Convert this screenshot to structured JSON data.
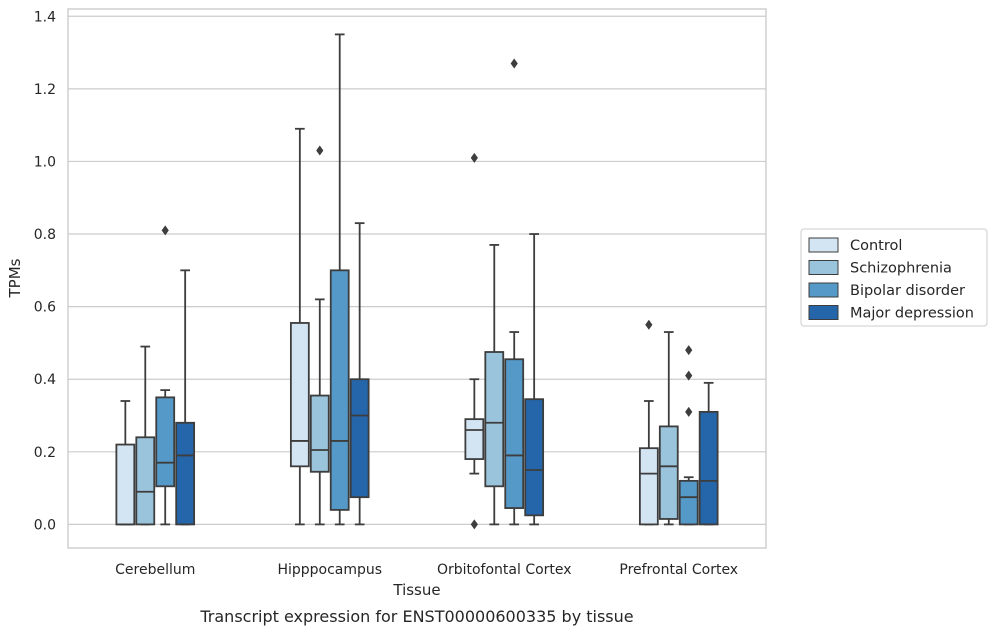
{
  "caption": "Transcript expression for ENST00000600335 by tissue",
  "chart_data": {
    "type": "box",
    "title": "",
    "xlabel": "Tissue",
    "ylabel": "TPMs",
    "ylim": [
      -0.065,
      1.42
    ],
    "yticks": [
      0.0,
      0.2,
      0.4,
      0.6,
      0.8,
      1.0,
      1.2,
      1.4
    ],
    "ytick_labels": [
      "0.0",
      "0.2",
      "0.4",
      "0.6",
      "0.8",
      "1.0",
      "1.2",
      "1.4"
    ],
    "grid": "horizontal",
    "legend_position": "right",
    "categories": [
      "Cerebellum",
      "Hipppocampus",
      "Orbitofontal Cortex",
      "Prefrontal Cortex"
    ],
    "series": [
      {
        "name": "Control",
        "color": "#d3e4f3",
        "boxes": [
          {
            "whislo": 0.0,
            "q1": 0.0,
            "med": 0.0,
            "q3": 0.22,
            "whishi": 0.34,
            "fliers": []
          },
          {
            "whislo": 0.0,
            "q1": 0.16,
            "med": 0.23,
            "q3": 0.555,
            "whishi": 1.09,
            "fliers": []
          },
          {
            "whislo": 0.14,
            "q1": 0.18,
            "med": 0.26,
            "q3": 0.29,
            "whishi": 0.4,
            "fliers": [
              1.01,
              0.0
            ]
          },
          {
            "whislo": 0.0,
            "q1": 0.0,
            "med": 0.14,
            "q3": 0.21,
            "whishi": 0.34,
            "fliers": [
              0.55
            ]
          }
        ]
      },
      {
        "name": "Schizophrenia",
        "color": "#9ac3dc",
        "boxes": [
          {
            "whislo": 0.0,
            "q1": 0.0,
            "med": 0.09,
            "q3": 0.24,
            "whishi": 0.49,
            "fliers": []
          },
          {
            "whislo": 0.0,
            "q1": 0.145,
            "med": 0.205,
            "q3": 0.355,
            "whishi": 0.62,
            "fliers": [
              1.03
            ]
          },
          {
            "whislo": 0.0,
            "q1": 0.105,
            "med": 0.28,
            "q3": 0.475,
            "whishi": 0.77,
            "fliers": []
          },
          {
            "whislo": 0.0,
            "q1": 0.015,
            "med": 0.16,
            "q3": 0.27,
            "whishi": 0.53,
            "fliers": []
          }
        ]
      },
      {
        "name": "Bipolar disorder",
        "color": "#5599c8",
        "boxes": [
          {
            "whislo": 0.0,
            "q1": 0.105,
            "med": 0.17,
            "q3": 0.35,
            "whishi": 0.37,
            "fliers": [
              0.81
            ]
          },
          {
            "whislo": 0.0,
            "q1": 0.04,
            "med": 0.23,
            "q3": 0.7,
            "whishi": 1.35,
            "fliers": []
          },
          {
            "whislo": 0.0,
            "q1": 0.045,
            "med": 0.19,
            "q3": 0.455,
            "whishi": 0.53,
            "fliers": [
              1.27
            ]
          },
          {
            "whislo": 0.0,
            "q1": 0.0,
            "med": 0.075,
            "q3": 0.12,
            "whishi": 0.13,
            "fliers": [
              0.48,
              0.41,
              0.31
            ]
          }
        ]
      },
      {
        "name": "Major depression",
        "color": "#2565a9",
        "boxes": [
          {
            "whislo": 0.0,
            "q1": 0.0,
            "med": 0.19,
            "q3": 0.28,
            "whishi": 0.7,
            "fliers": []
          },
          {
            "whislo": 0.0,
            "q1": 0.075,
            "med": 0.3,
            "q3": 0.4,
            "whishi": 0.83,
            "fliers": []
          },
          {
            "whislo": 0.0,
            "q1": 0.025,
            "med": 0.15,
            "q3": 0.345,
            "whishi": 0.8,
            "fliers": []
          },
          {
            "whislo": 0.0,
            "q1": 0.0,
            "med": 0.12,
            "q3": 0.31,
            "whishi": 0.39,
            "fliers": []
          }
        ]
      }
    ]
  }
}
